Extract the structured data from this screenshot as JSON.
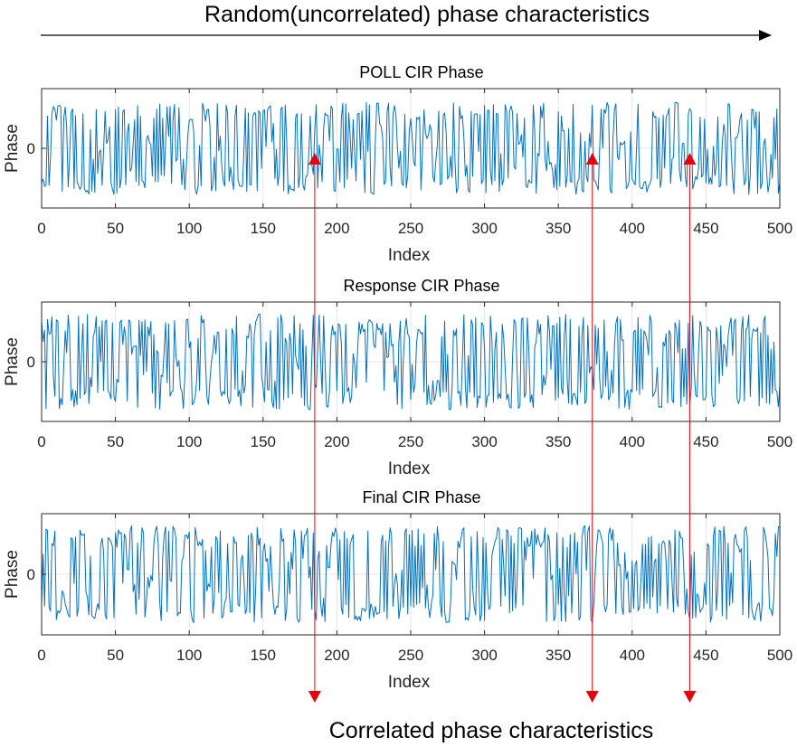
{
  "annotations": {
    "top_caption": "Random(uncorrelated) phase characteristics",
    "bottom_caption": "Correlated phase characteristics",
    "marker_indices": [
      185,
      373,
      439
    ],
    "marker_color": "#e8000b"
  },
  "chart_data": [
    {
      "type": "line",
      "title": "POLL CIR Phase",
      "xlabel": "Index",
      "ylabel": "Phase",
      "xlim": [
        0,
        500
      ],
      "ylim": [
        -3.5,
        3.5
      ],
      "xticks": [
        0,
        50,
        100,
        150,
        200,
        250,
        300,
        350,
        400,
        450,
        500
      ],
      "yticks": [
        0
      ],
      "grid": true,
      "line_color": "#0072bd",
      "series": [
        {
          "seed": 11,
          "n": 500,
          "amplitude": 2.7
        }
      ]
    },
    {
      "type": "line",
      "title": "Response CIR Phase",
      "xlabel": "Index",
      "ylabel": "Phase",
      "xlim": [
        0,
        500
      ],
      "ylim": [
        -3.5,
        3.5
      ],
      "xticks": [
        0,
        50,
        100,
        150,
        200,
        250,
        300,
        350,
        400,
        450,
        500
      ],
      "yticks": [
        0
      ],
      "grid": true,
      "line_color": "#0072bd",
      "series": [
        {
          "seed": 29,
          "n": 500,
          "amplitude": 2.8
        }
      ]
    },
    {
      "type": "line",
      "title": "Final CIR Phase",
      "xlabel": "Index",
      "ylabel": "Phase",
      "xlim": [
        0,
        500
      ],
      "ylim": [
        -3.5,
        3.5
      ],
      "xticks": [
        0,
        50,
        100,
        150,
        200,
        250,
        300,
        350,
        400,
        450,
        500
      ],
      "yticks": [
        0
      ],
      "grid": true,
      "line_color": "#0072bd",
      "series": [
        {
          "seed": 53,
          "n": 500,
          "amplitude": 2.8
        }
      ]
    }
  ]
}
